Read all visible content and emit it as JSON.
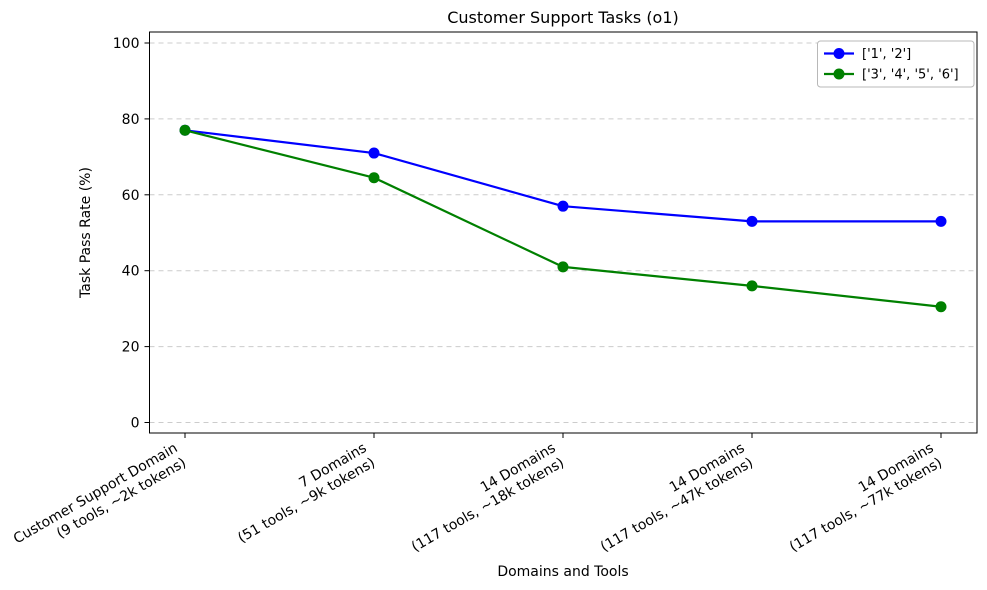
{
  "figure": {
    "background": "#ffffff"
  },
  "chart_data": {
    "type": "line",
    "title": "Customer Support Tasks (o1)",
    "xlabel": "Domains and Tools",
    "ylabel": "Task Pass Rate (%)",
    "ylim": [
      0,
      100
    ],
    "yticks": [
      0,
      20,
      40,
      60,
      80,
      100
    ],
    "grid": "horizontal-dashed",
    "grid_color": "#cccccc",
    "legend_position": "upper-right",
    "categories": [
      [
        "Customer Support Domain",
        "(9 tools, ~2k tokens)"
      ],
      [
        "7 Domains",
        "(51 tools, ~9k tokens)"
      ],
      [
        "14 Domains",
        "(117 tools, ~18k tokens)"
      ],
      [
        "14 Domains",
        "(117 tools, ~47k tokens)"
      ],
      [
        "14 Domains",
        "(117 tools, ~77k tokens)"
      ]
    ],
    "series": [
      {
        "name": "['1', '2']",
        "color": "#0000ff",
        "values": [
          77,
          71,
          57,
          53,
          53
        ]
      },
      {
        "name": "['3', '4', '5', '6']",
        "color": "#008000",
        "values": [
          77,
          64.5,
          41,
          36,
          30.5
        ]
      }
    ]
  }
}
